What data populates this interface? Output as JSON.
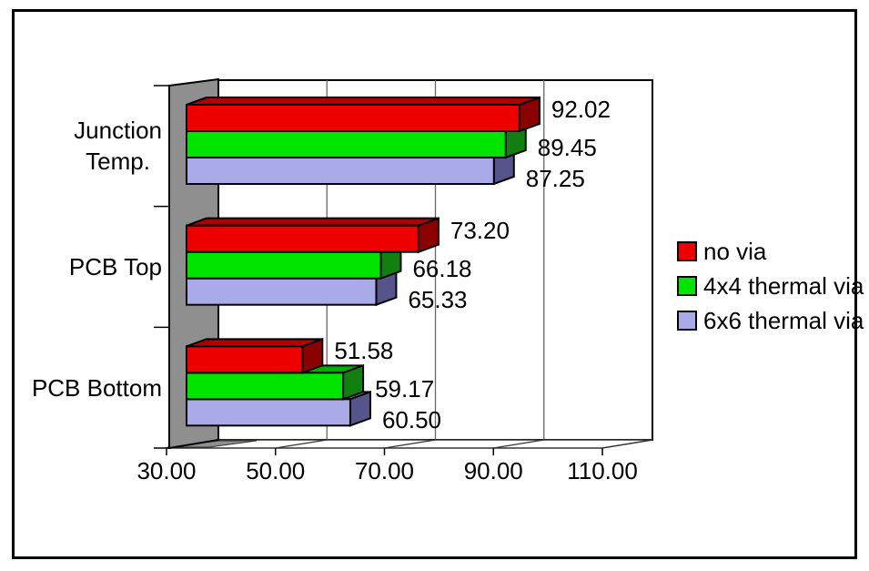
{
  "chart_data": {
    "type": "bar",
    "orientation": "horizontal",
    "style": "3d",
    "title": "",
    "categories": [
      "Junction\nTemp.",
      "PCB Top",
      "PCB Bottom"
    ],
    "series": [
      {
        "name": "no via",
        "values": [
          92.02,
          73.2,
          51.58
        ],
        "front_color": "#ee0000",
        "top_color": "#b00000",
        "side_color": "#8b0000"
      },
      {
        "name": "4x4 thermal via",
        "values": [
          89.45,
          66.18,
          59.17
        ],
        "front_color": "#00e400",
        "top_color": "#00b000",
        "side_color": "#118011"
      },
      {
        "name": "6x6 thermal via",
        "values": [
          87.25,
          65.33,
          60.5
        ],
        "front_color": "#aaaae8",
        "top_color": "#9a9ad6",
        "side_color": "#55558c"
      }
    ],
    "x_axis": {
      "min": 30,
      "max": 110,
      "step": 20,
      "tick_labels": [
        "30.00",
        "50.00",
        "70.00",
        "90.00",
        "110.00"
      ]
    },
    "legend": {
      "position": "right",
      "entries": [
        "no via",
        "4x4 thermal via",
        "6x6 thermal via"
      ]
    },
    "grid": true,
    "value_labels_shown": true,
    "colors": {
      "plot_background": "#ffffff",
      "side_wall": "#8f8f8f",
      "gridline": "#666666",
      "axis_line": "#333333",
      "outline": "#000000",
      "frame_border": "#000000",
      "text": "#000000"
    }
  }
}
